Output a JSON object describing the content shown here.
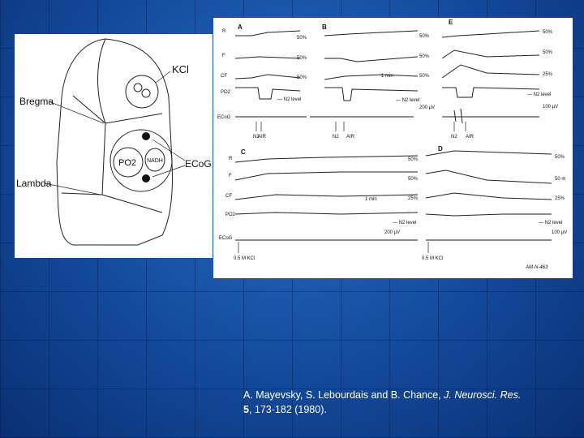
{
  "figure_left": {
    "labels": [
      "KCl",
      "Bregma",
      "Lambda",
      "PO2",
      "NADH",
      "ECoG"
    ]
  },
  "figure_right": {
    "panels": [
      "A",
      "B",
      "E",
      "C",
      "D"
    ],
    "rows_top": [
      "R",
      "F",
      "CF",
      "PO2",
      "ECoG"
    ],
    "rows_bottom": [
      "R",
      "F",
      "CF",
      "PO2",
      "ECoG"
    ],
    "scales_top": [
      "50%",
      "50%",
      "50%",
      "50%",
      "50%",
      "50%",
      "50%",
      "50%",
      "25%",
      "200 µV",
      "100 µV"
    ],
    "scales_bottom": [
      "50%",
      "50%",
      "25%",
      "200 µV",
      "50%",
      "50 m",
      "25%",
      "100 µV"
    ],
    "time": [
      "1 min",
      "1 min"
    ],
    "level": [
      "— N2 level",
      "— N2 level",
      "— N2 level",
      "— N2 level",
      "— N2 level"
    ],
    "markers": [
      "N2",
      "AIR",
      "N2",
      "AIR",
      "N2",
      "AIR",
      "0.5 M KCl",
      "0.5 M KCl"
    ],
    "code": "AM-N-463"
  },
  "citation": {
    "authors": "A. Mayevsky, S. Lebourdais and B. Chance, ",
    "journal": "J. Neurosci. Res.",
    "volume": "5",
    "pages": ", 173-182 (1980)."
  }
}
